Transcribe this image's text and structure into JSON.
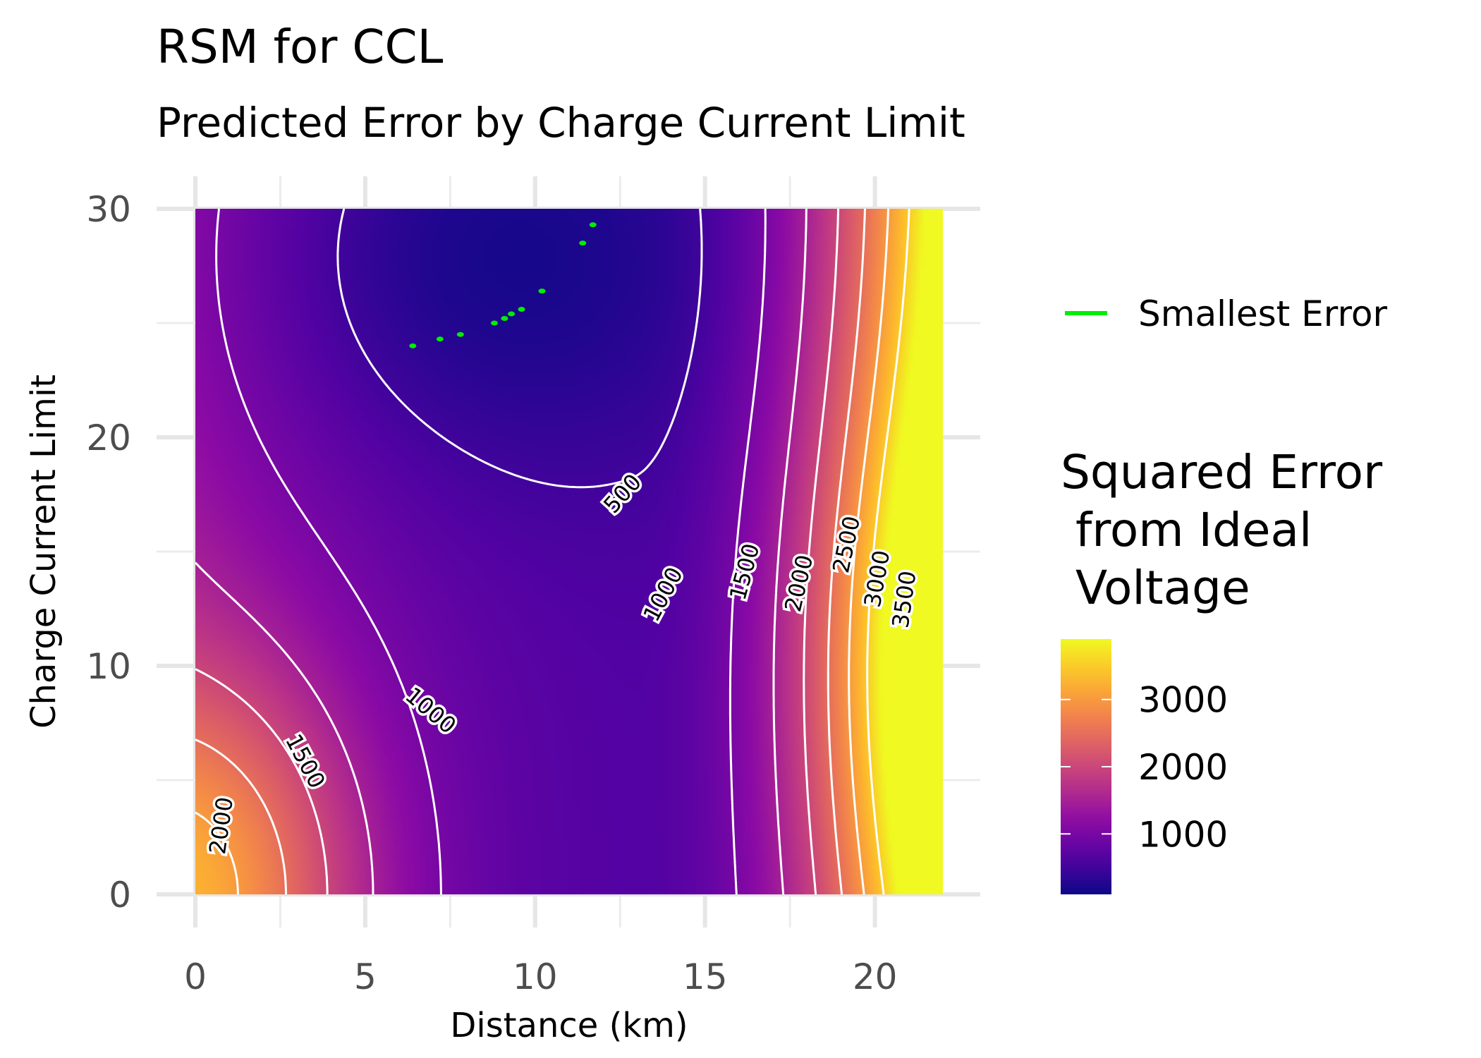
{
  "chart_data": {
    "type": "heatmap",
    "title": "RSM for CCL",
    "subtitle": "Predicted Error by Charge Current Limit",
    "xlabel": "Distance (km)",
    "ylabel": "Charge Current Limit",
    "xlim": [
      0,
      22
    ],
    "ylim": [
      0,
      30
    ],
    "x_ticks": [
      "0",
      "5",
      "10",
      "15",
      "20"
    ],
    "y_ticks": [
      "0",
      "10",
      "20",
      "30"
    ],
    "colorscale": "plasma",
    "color_range": [
      100,
      3900
    ],
    "colorbar": {
      "title": [
        "Squared Error",
        " from Ideal",
        " Voltage"
      ],
      "ticks": [
        {
          "label": "1000",
          "value": 1000
        },
        {
          "label": "2000",
          "value": 2000
        },
        {
          "label": "3000",
          "value": 3000
        }
      ]
    },
    "contour_levels": [
      500,
      1000,
      1500,
      2000,
      2500,
      3000,
      3500
    ],
    "contour_labels": [
      {
        "text": "500",
        "x": 12.6,
        "y": 17.5,
        "angle": -48
      },
      {
        "text": "1000",
        "x": 13.8,
        "y": 13.1,
        "angle": -62
      },
      {
        "text": "1500",
        "x": 16.2,
        "y": 14.1,
        "angle": -75
      },
      {
        "text": "2000",
        "x": 17.8,
        "y": 13.6,
        "angle": -77
      },
      {
        "text": "2500",
        "x": 19.2,
        "y": 15.3,
        "angle": -78
      },
      {
        "text": "3000",
        "x": 20.1,
        "y": 13.8,
        "angle": -80
      },
      {
        "text": "3500",
        "x": 20.9,
        "y": 12.9,
        "angle": -82
      },
      {
        "text": "1000",
        "x": 6.9,
        "y": 8.0,
        "angle": 40
      },
      {
        "text": "1500",
        "x": 3.2,
        "y": 5.8,
        "angle": 62
      },
      {
        "text": "2000",
        "x": 0.8,
        "y": 3.0,
        "angle": -82
      }
    ],
    "series": [
      {
        "name": "Smallest Error",
        "color": "#00ee00",
        "points": [
          [
            6.4,
            24.0
          ],
          [
            7.2,
            24.3
          ],
          [
            7.8,
            24.5
          ],
          [
            8.8,
            25.0
          ],
          [
            9.1,
            25.2
          ],
          [
            9.3,
            25.4
          ],
          [
            9.6,
            25.6
          ],
          [
            10.2,
            26.4
          ],
          [
            11.4,
            28.5
          ],
          [
            11.7,
            29.3
          ]
        ]
      }
    ],
    "legend": {
      "label": "Smallest Error",
      "color": "#00ee00",
      "placement": "right"
    }
  }
}
